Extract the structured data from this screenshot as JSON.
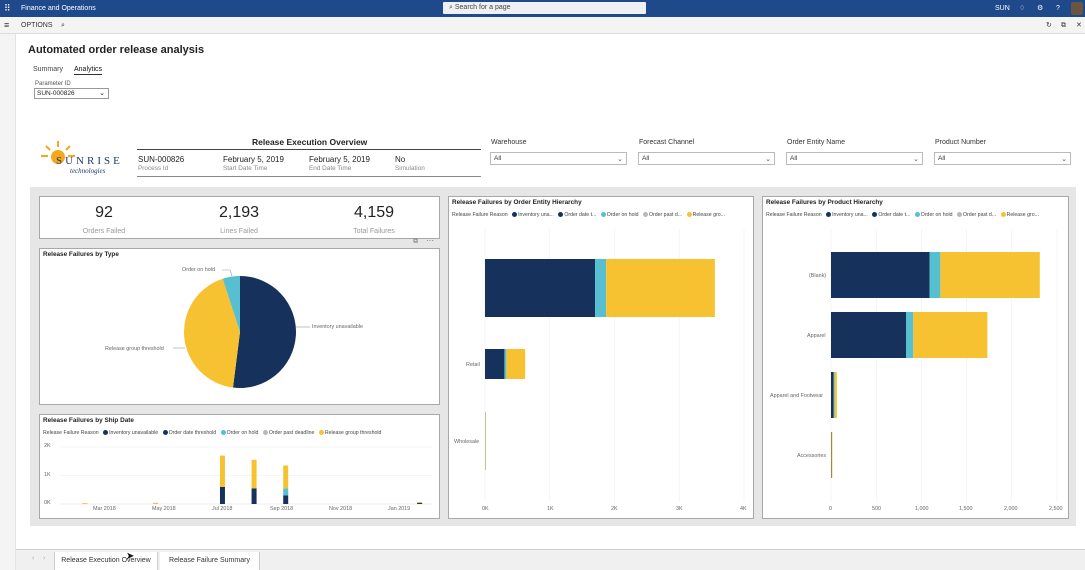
{
  "topbar": {
    "app_title": "Finance and Operations",
    "search_placeholder": "Search for a page",
    "company": "SUN",
    "bg": "#1e4a8c"
  },
  "cmdbar": {
    "options_label": "OPTIONS"
  },
  "page": {
    "title": "Automated order release analysis",
    "tabs": [
      "Summary",
      "Analytics"
    ],
    "active_tab": "Analytics"
  },
  "parameter": {
    "label": "Parameter ID",
    "value": "SUN-000826"
  },
  "report": {
    "logo": {
      "name": "SUNRISE",
      "sub": "technologies"
    },
    "overview_title": "Release Execution Overview",
    "fields": [
      {
        "value": "SUN-000826",
        "label": "Process Id"
      },
      {
        "value": "February 5, 2019",
        "label": "Start Date Time"
      },
      {
        "value": "February 5, 2019",
        "label": "End Date Time"
      },
      {
        "value": "No",
        "label": "Simulation"
      }
    ],
    "slicers": [
      {
        "label": "Warehouse",
        "value": "All"
      },
      {
        "label": "Forecast Channel",
        "value": "All"
      },
      {
        "label": "Order Entity Name",
        "value": "All"
      },
      {
        "label": "Product Number",
        "value": "All"
      }
    ],
    "kpis": [
      {
        "value": "92",
        "label": "Orders Failed"
      },
      {
        "value": "2,193",
        "label": "Lines Failed"
      },
      {
        "value": "4,159",
        "label": "Total Failures"
      }
    ]
  },
  "colors": {
    "inventory": "#16325c",
    "datethreshold": "#16325c",
    "onhold": "#56bfd0",
    "pastdeadline": "#b8b8b8",
    "groupthreshold": "#f6c232"
  },
  "chart_data": [
    {
      "type": "pie",
      "title": "Release Failures by Type",
      "slices": [
        {
          "name": "Inventory unavailable",
          "value": 0.52,
          "color": "#16325c"
        },
        {
          "name": "Release group threshold",
          "value": 0.43,
          "color": "#f6c232"
        },
        {
          "name": "Order on hold",
          "value": 0.05,
          "color": "#56bfd0"
        }
      ],
      "labels": [
        "Order on hold",
        "Inventory unavailable",
        "Release group threshold"
      ]
    },
    {
      "type": "bar",
      "title": "Release Failures by Ship Date",
      "legend_title": "Release Failure Reason",
      "legend": [
        "Inventory unavailable",
        "Order date threshold",
        "Order on hold",
        "Order past deadline",
        "Release group threshold"
      ],
      "ylabels": [
        "2K",
        "1K",
        "0K"
      ],
      "xlabels": [
        "Mar 2018",
        "May 2018",
        "Jul 2018",
        "Sep 2018",
        "Nov 2018",
        "Jan 2019"
      ],
      "ylim": [
        0,
        2000
      ],
      "bars": [
        {
          "pos": 0.43,
          "inv": 600,
          "hold": 0,
          "grp": 1100
        },
        {
          "pos": 0.515,
          "inv": 550,
          "hold": 0,
          "grp": 1000
        },
        {
          "pos": 0.6,
          "inv": 300,
          "hold": 250,
          "grp": 800
        },
        {
          "pos": 0.06,
          "inv": 0,
          "hold": 0,
          "grp": 30
        },
        {
          "pos": 0.25,
          "inv": 0,
          "hold": 0,
          "grp": 40
        },
        {
          "pos": 0.96,
          "inv": 40,
          "hold": 0,
          "grp": 30
        }
      ]
    },
    {
      "type": "hbar",
      "title": "Release Failures by Order Entity Hierarchy",
      "legend_title": "Release Failure Reason",
      "legend": [
        "Inventory una...",
        "Order date t...",
        "Order on hold",
        "Order past d...",
        "Release gro..."
      ],
      "categories": [
        "",
        "Retail",
        "Wholesale"
      ],
      "xlabels": [
        "0K",
        "1K",
        "2K",
        "3K",
        "4K"
      ],
      "xlim": [
        0,
        4000
      ],
      "rows": [
        {
          "inv": 1700,
          "hold": 170,
          "grp": 1680
        },
        {
          "inv": 300,
          "hold": 30,
          "grp": 290
        },
        {
          "inv": 5,
          "hold": 0,
          "grp": 5
        }
      ]
    },
    {
      "type": "hbar",
      "title": "Release Failures by Product Hierarchy",
      "legend_title": "Release Failure Reason",
      "legend": [
        "Inventory una...",
        "Order date t...",
        "Order on hold",
        "Order past d...",
        "Release gro..."
      ],
      "categories": [
        "(Blank)",
        "Apparel",
        "Apparel and Footwear",
        "Accessories"
      ],
      "xlabels": [
        "0",
        "500",
        "1,000",
        "1,500",
        "2,000",
        "2,500"
      ],
      "xlim": [
        0,
        2500
      ],
      "rows": [
        {
          "inv": 1090,
          "hold": 120,
          "grp": 1100
        },
        {
          "inv": 830,
          "hold": 80,
          "grp": 820
        },
        {
          "inv": 30,
          "hold": 10,
          "grp": 25
        },
        {
          "inv": 5,
          "hold": 0,
          "grp": 10
        }
      ]
    }
  ],
  "bottom_tabs": [
    "Release Execution Overview",
    "Release Failure Summary"
  ]
}
